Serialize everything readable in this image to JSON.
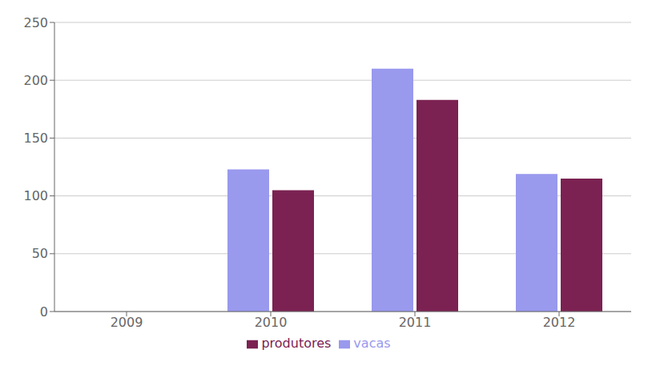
{
  "chart_data": {
    "type": "bar",
    "categories": [
      "2009",
      "2010",
      "2011",
      "2012"
    ],
    "series": [
      {
        "name": "vacas",
        "color": "#9999ee",
        "values": [
          0,
          123,
          210,
          119
        ]
      },
      {
        "name": "produtores",
        "color": "#7b2252",
        "values": [
          0,
          105,
          183,
          115
        ]
      }
    ],
    "ylim": [
      0,
      250
    ],
    "yticks": [
      0,
      50,
      100,
      150,
      200,
      250
    ],
    "grid": true,
    "legend": "bottom"
  }
}
